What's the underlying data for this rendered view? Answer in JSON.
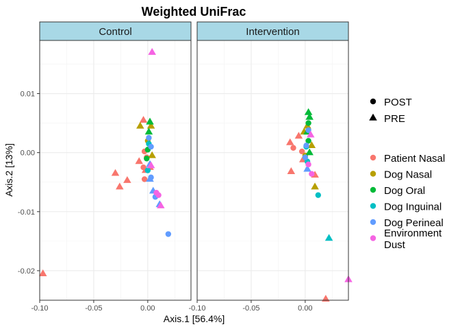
{
  "chart_data": {
    "type": "scatter",
    "title": "Weighted UniFrac",
    "xlabel": "Axis.1   [56.4%]",
    "ylabel": "Axis.2   [13%]",
    "xlim": [
      -0.1,
      0.04
    ],
    "ylim": [
      -0.025,
      0.019
    ],
    "x_ticks": [
      -0.1,
      -0.05,
      0.0
    ],
    "x_tick_labels": [
      "-0.10",
      "-0.05",
      "0.00"
    ],
    "y_ticks": [
      -0.02,
      -0.01,
      0.0,
      0.01
    ],
    "y_tick_labels": [
      "-0.02",
      "-0.01",
      "0.00",
      "0.01"
    ],
    "grid": true,
    "legend_position": "right",
    "shape_legend": [
      {
        "key": "POST",
        "label": "POST",
        "shape": "circle"
      },
      {
        "key": "PRE",
        "label": "PRE",
        "shape": "triangle"
      }
    ],
    "color_legend": [
      {
        "key": "Patient Nasal",
        "label_lines": [
          "Patient Nasal"
        ],
        "color": "#F8766D"
      },
      {
        "key": "Dog Nasal",
        "label_lines": [
          "Dog Nasal"
        ],
        "color": "#B79F00"
      },
      {
        "key": "Dog Oral",
        "label_lines": [
          "Dog Oral"
        ],
        "color": "#00BA38"
      },
      {
        "key": "Dog Inguinal",
        "label_lines": [
          "Dog Inguinal"
        ],
        "color": "#00BFC4"
      },
      {
        "key": "Dog Perineal",
        "label_lines": [
          "Dog Perineal"
        ],
        "color": "#619CFF"
      },
      {
        "key": "Environment Dust",
        "label_lines": [
          "Environment",
          "Dust"
        ],
        "color": "#F564E3"
      }
    ],
    "panels": [
      {
        "label": "Control",
        "points": [
          {
            "x": 0.004,
            "y": 0.017,
            "shape": "PRE",
            "group": "Environment Dust"
          },
          {
            "x": -0.097,
            "y": -0.0205,
            "shape": "PRE",
            "group": "Patient Nasal"
          },
          {
            "x": -0.03,
            "y": -0.0035,
            "shape": "PRE",
            "group": "Patient Nasal"
          },
          {
            "x": -0.026,
            "y": -0.0058,
            "shape": "PRE",
            "group": "Patient Nasal"
          },
          {
            "x": -0.019,
            "y": -0.0047,
            "shape": "PRE",
            "group": "Patient Nasal"
          },
          {
            "x": -0.008,
            "y": -0.0015,
            "shape": "PRE",
            "group": "Patient Nasal"
          },
          {
            "x": -0.004,
            "y": 0.0055,
            "shape": "PRE",
            "group": "Patient Nasal"
          },
          {
            "x": -0.003,
            "y": 0.0002,
            "shape": "POST",
            "group": "Patient Nasal"
          },
          {
            "x": -0.004,
            "y": -0.0025,
            "shape": "POST",
            "group": "Patient Nasal"
          },
          {
            "x": -0.002,
            "y": -0.003,
            "shape": "PRE",
            "group": "Patient Nasal"
          },
          {
            "x": -0.003,
            "y": -0.0045,
            "shape": "POST",
            "group": "Patient Nasal"
          },
          {
            "x": 0.002,
            "y": -0.0025,
            "shape": "PRE",
            "group": "Patient Nasal"
          },
          {
            "x": -0.001,
            "y": -0.0008,
            "shape": "POST",
            "group": "Patient Nasal"
          },
          {
            "x": -0.007,
            "y": 0.0045,
            "shape": "PRE",
            "group": "Dog Nasal"
          },
          {
            "x": 0.003,
            "y": 0.0045,
            "shape": "PRE",
            "group": "Dog Nasal"
          },
          {
            "x": 0.004,
            "y": -0.0005,
            "shape": "PRE",
            "group": "Dog Nasal"
          },
          {
            "x": 0.0,
            "y": 0.002,
            "shape": "POST",
            "group": "Dog Nasal"
          },
          {
            "x": 0.002,
            "y": 0.0052,
            "shape": "PRE",
            "group": "Dog Oral"
          },
          {
            "x": 0.001,
            "y": 0.0035,
            "shape": "PRE",
            "group": "Dog Oral"
          },
          {
            "x": 0.0,
            "y": 0.0005,
            "shape": "POST",
            "group": "Dog Oral"
          },
          {
            "x": -0.001,
            "y": -0.001,
            "shape": "POST",
            "group": "Dog Oral"
          },
          {
            "x": 0.001,
            "y": 0.0015,
            "shape": "POST",
            "group": "Dog Inguinal"
          },
          {
            "x": 0.0,
            "y": -0.003,
            "shape": "POST",
            "group": "Dog Inguinal"
          },
          {
            "x": 0.001,
            "y": 0.0025,
            "shape": "POST",
            "group": "Dog Perineal"
          },
          {
            "x": 0.003,
            "y": 0.001,
            "shape": "POST",
            "group": "Dog Perineal"
          },
          {
            "x": 0.002,
            "y": -0.002,
            "shape": "PRE",
            "group": "Dog Perineal"
          },
          {
            "x": 0.003,
            "y": -0.0042,
            "shape": "POST",
            "group": "Dog Perineal"
          },
          {
            "x": 0.005,
            "y": -0.0065,
            "shape": "PRE",
            "group": "Dog Perineal"
          },
          {
            "x": 0.007,
            "y": -0.0075,
            "shape": "POST",
            "group": "Dog Perineal"
          },
          {
            "x": 0.011,
            "y": -0.0088,
            "shape": "PRE",
            "group": "Dog Perineal"
          },
          {
            "x": 0.019,
            "y": -0.0138,
            "shape": "POST",
            "group": "Dog Perineal"
          },
          {
            "x": 0.002,
            "y": -0.0045,
            "shape": "PRE",
            "group": "Dog Perineal"
          },
          {
            "x": 0.008,
            "y": -0.0068,
            "shape": "POST",
            "group": "Environment Dust"
          },
          {
            "x": 0.01,
            "y": -0.0072,
            "shape": "POST",
            "group": "Environment Dust"
          },
          {
            "x": 0.012,
            "y": -0.009,
            "shape": "PRE",
            "group": "Environment Dust"
          },
          {
            "x": 0.003,
            "y": -0.0022,
            "shape": "PRE",
            "group": "Environment Dust"
          }
        ]
      },
      {
        "label": "Intervention",
        "points": [
          {
            "x": -0.014,
            "y": 0.0017,
            "shape": "PRE",
            "group": "Patient Nasal"
          },
          {
            "x": -0.011,
            "y": 0.0008,
            "shape": "POST",
            "group": "Patient Nasal"
          },
          {
            "x": -0.013,
            "y": -0.0032,
            "shape": "PRE",
            "group": "Patient Nasal"
          },
          {
            "x": -0.006,
            "y": 0.0028,
            "shape": "PRE",
            "group": "Patient Nasal"
          },
          {
            "x": -0.003,
            "y": 0.0002,
            "shape": "POST",
            "group": "Patient Nasal"
          },
          {
            "x": -0.002,
            "y": -0.0012,
            "shape": "PRE",
            "group": "Patient Nasal"
          },
          {
            "x": 0.009,
            "y": -0.0038,
            "shape": "PRE",
            "group": "Patient Nasal"
          },
          {
            "x": 0.019,
            "y": -0.0248,
            "shape": "PRE",
            "group": "Patient Nasal"
          },
          {
            "x": -0.001,
            "y": 0.0035,
            "shape": "PRE",
            "group": "Dog Nasal"
          },
          {
            "x": 0.002,
            "y": 0.0045,
            "shape": "PRE",
            "group": "Dog Nasal"
          },
          {
            "x": 0.006,
            "y": 0.0012,
            "shape": "PRE",
            "group": "Dog Nasal"
          },
          {
            "x": 0.009,
            "y": -0.0058,
            "shape": "PRE",
            "group": "Dog Nasal"
          },
          {
            "x": 0.0,
            "y": -0.0005,
            "shape": "POST",
            "group": "Dog Nasal"
          },
          {
            "x": 0.003,
            "y": 0.0068,
            "shape": "PRE",
            "group": "Dog Oral"
          },
          {
            "x": 0.004,
            "y": 0.006,
            "shape": "PRE",
            "group": "Dog Oral"
          },
          {
            "x": 0.003,
            "y": 0.005,
            "shape": "POST",
            "group": "Dog Oral"
          },
          {
            "x": 0.002,
            "y": 0.0035,
            "shape": "PRE",
            "group": "Dog Oral"
          },
          {
            "x": 0.003,
            "y": 0.002,
            "shape": "POST",
            "group": "Dog Oral"
          },
          {
            "x": 0.004,
            "y": 0.0,
            "shape": "PRE",
            "group": "Dog Oral"
          },
          {
            "x": 0.001,
            "y": 0.001,
            "shape": "POST",
            "group": "Dog Inguinal"
          },
          {
            "x": 0.002,
            "y": -0.0015,
            "shape": "POST",
            "group": "Dog Inguinal"
          },
          {
            "x": 0.012,
            "y": -0.0072,
            "shape": "POST",
            "group": "Dog Inguinal"
          },
          {
            "x": 0.022,
            "y": -0.0145,
            "shape": "PRE",
            "group": "Dog Inguinal"
          },
          {
            "x": 0.003,
            "y": 0.0038,
            "shape": "POST",
            "group": "Dog Perineal"
          },
          {
            "x": 0.001,
            "y": 0.0012,
            "shape": "POST",
            "group": "Dog Perineal"
          },
          {
            "x": 0.002,
            "y": -0.0028,
            "shape": "PRE",
            "group": "Dog Perineal"
          },
          {
            "x": 0.0,
            "y": -0.0008,
            "shape": "POST",
            "group": "Dog Perineal"
          },
          {
            "x": 0.005,
            "y": 0.003,
            "shape": "PRE",
            "group": "Environment Dust"
          },
          {
            "x": 0.006,
            "y": -0.0036,
            "shape": "POST",
            "group": "Environment Dust"
          },
          {
            "x": 0.003,
            "y": -0.002,
            "shape": "POST",
            "group": "Environment Dust"
          },
          {
            "x": 0.04,
            "y": -0.0215,
            "shape": "PRE",
            "group": "Environment Dust"
          }
        ]
      }
    ]
  }
}
